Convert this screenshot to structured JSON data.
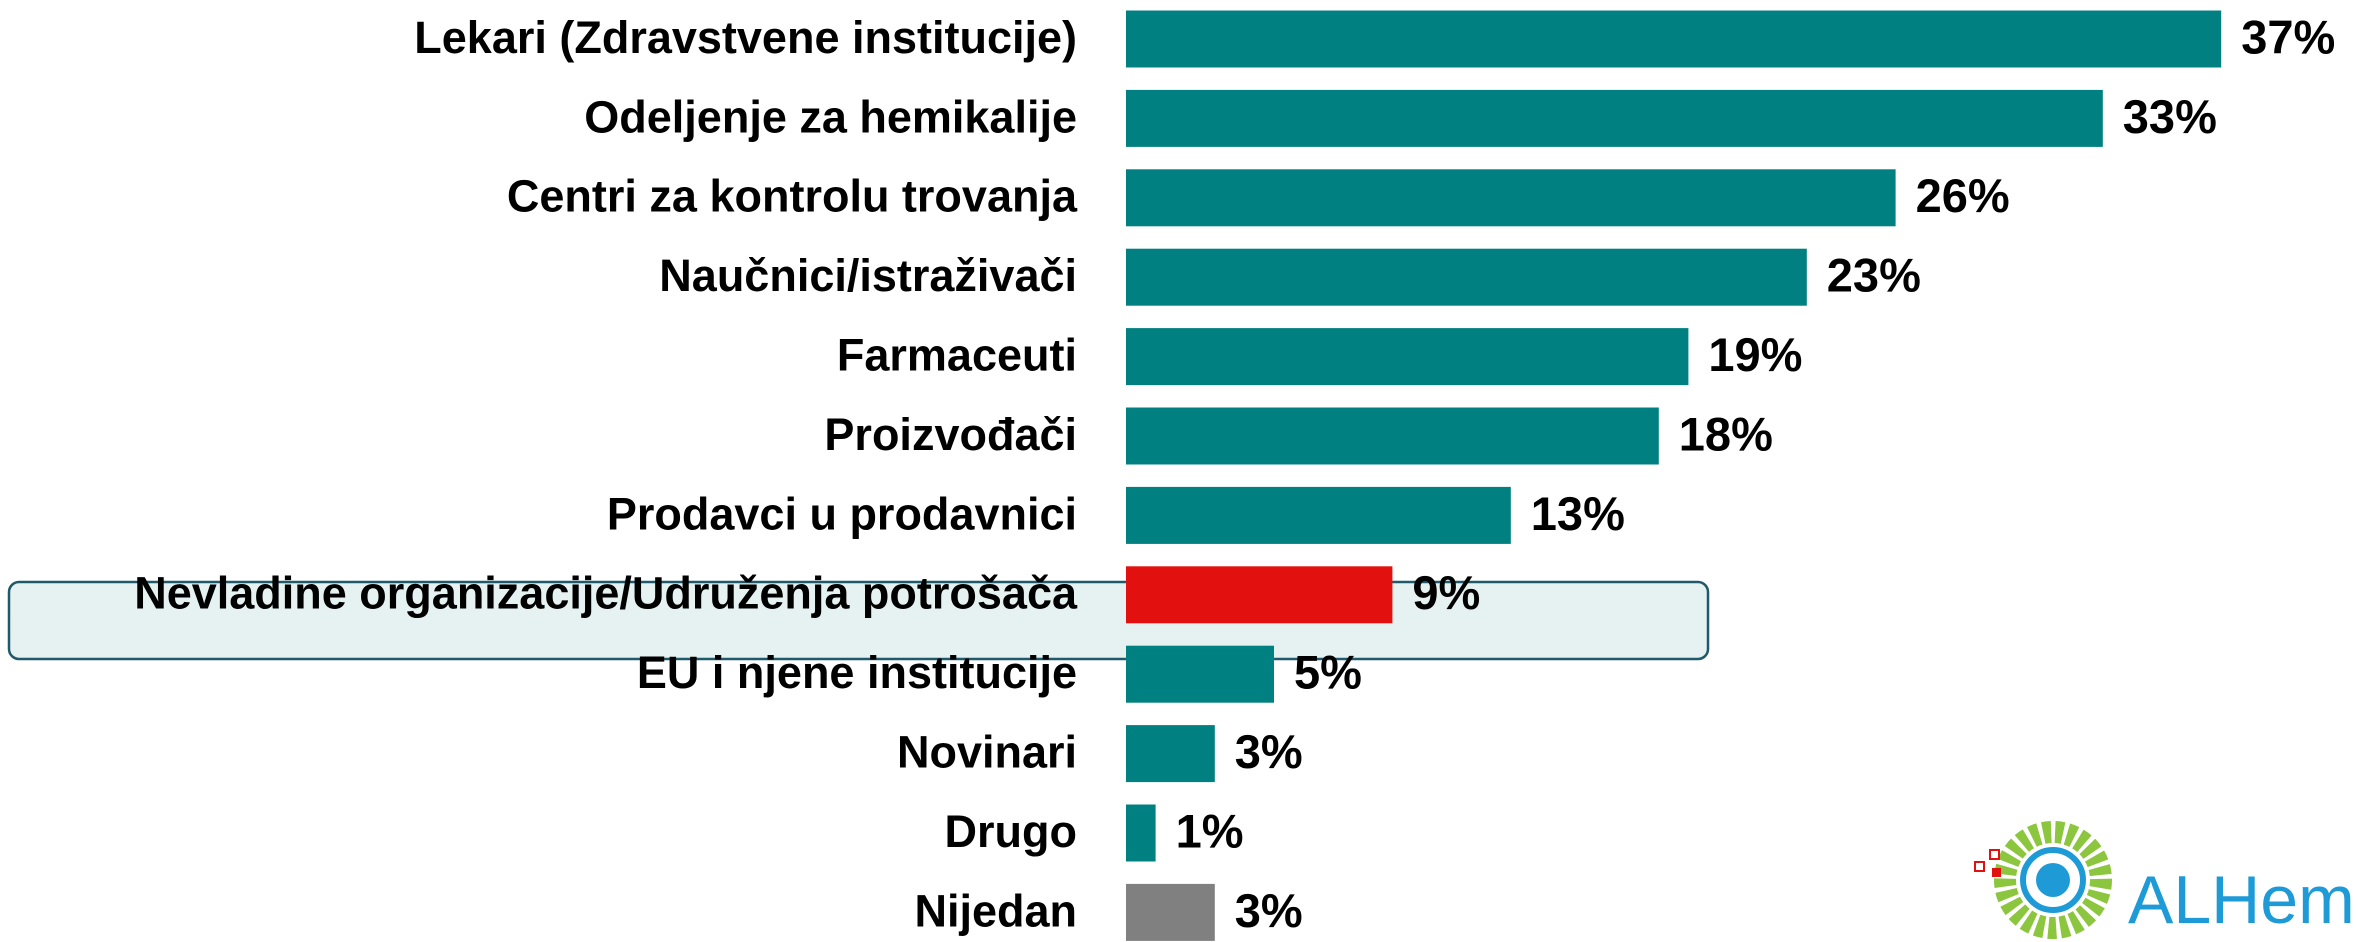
{
  "chart_data": {
    "type": "bar",
    "orientation": "horizontal",
    "categories": [
      "Lekari (Zdravstvene institucije)",
      "Odeljenje za hemikalije",
      "Centri za kontrolu trovanja",
      "Naučnici/istraživači",
      "Farmaceuti",
      "Proizvođači",
      "Prodavci u prodavnici",
      "Nevladine organizacije/Udruženja potrošača",
      "EU i njene institucije",
      "Novinari",
      "Drugo",
      "Nijedan"
    ],
    "values": [
      37,
      33,
      26,
      23,
      19,
      18,
      13,
      9,
      5,
      3,
      1,
      3
    ],
    "value_labels": [
      "37%",
      "33%",
      "26%",
      "23%",
      "19%",
      "18%",
      "13%",
      "9%",
      "5%",
      "3%",
      "1%",
      "3%"
    ],
    "colors": [
      "#008080",
      "#008080",
      "#008080",
      "#008080",
      "#008080",
      "#008080",
      "#008080",
      "#e31010",
      "#008080",
      "#008080",
      "#008080",
      "#808080"
    ],
    "xlim": [
      0,
      37
    ]
  },
  "logo": "ALHem"
}
